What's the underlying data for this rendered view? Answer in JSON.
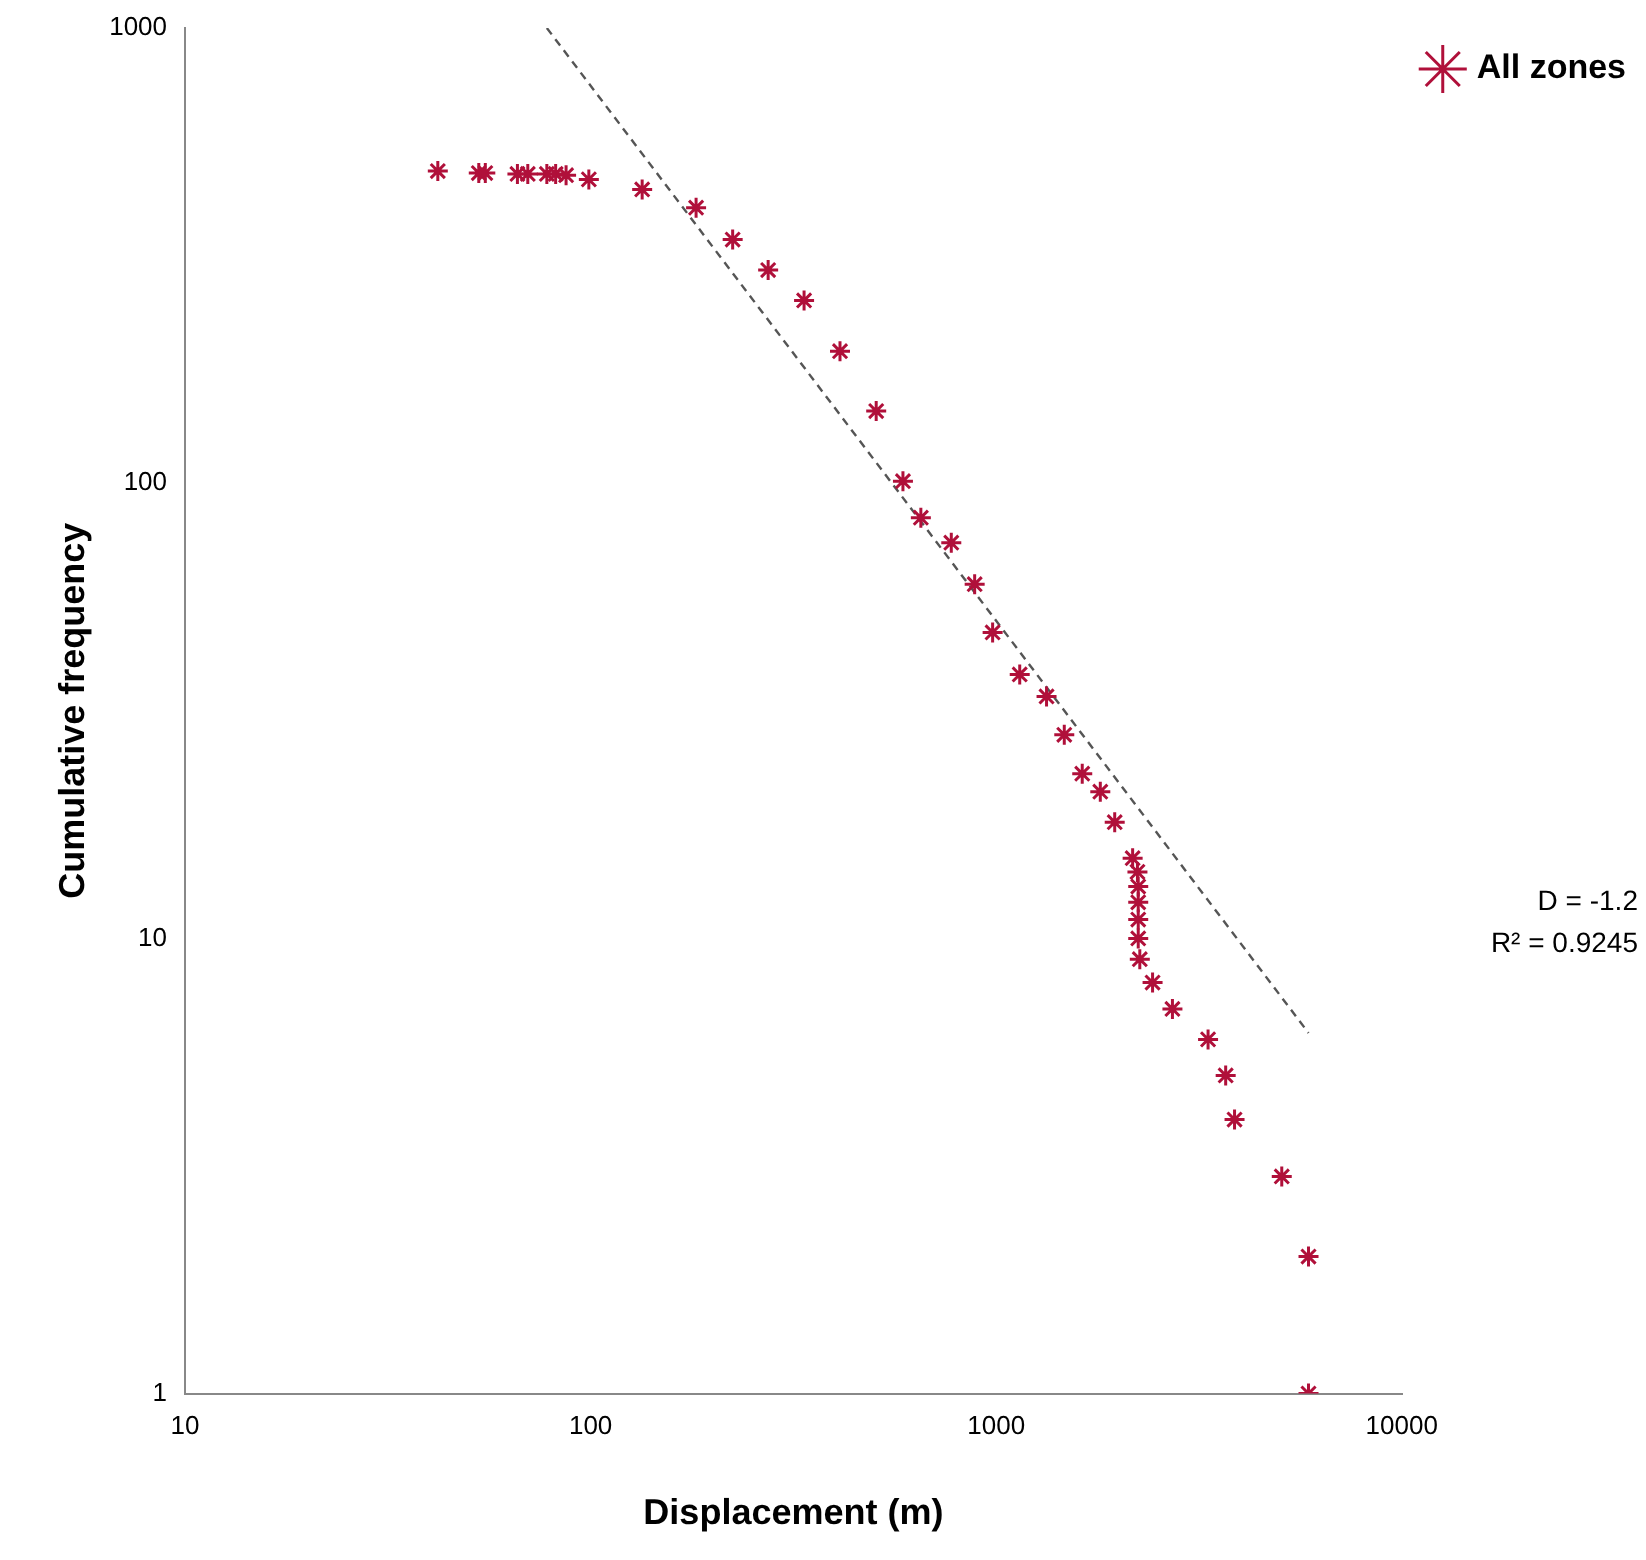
{
  "chart_data": {
    "type": "scatter",
    "xlabel": "Displacement (m)",
    "ylabel": "Cumulative frequency",
    "log": "xy",
    "xlim": [
      10,
      10000
    ],
    "xticks": [
      10,
      100,
      1000,
      10000
    ],
    "ylim": [
      1,
      1000
    ],
    "yticks": [
      1,
      10,
      100,
      1000
    ],
    "grid": false,
    "legend": "right",
    "marker": "cross",
    "annotations": [
      "D = -1.2\nR² = 0.9245"
    ],
    "series": [
      {
        "name": "All zones",
        "type": "scatter",
        "color": "#b0103a",
        "x": [
          42,
          53,
          55,
          66,
          70,
          78,
          82,
          87,
          99,
          134,
          182,
          224,
          274,
          336,
          412,
          506,
          589,
          652,
          775,
          885,
          980,
          1143,
          1331,
          1472,
          1630,
          1806,
          1960,
          2170,
          2230,
          2240,
          2240,
          2240,
          2240,
          2260,
          2430,
          2720,
          3330,
          3680,
          3870,
          5060,
          5890,
          5890
        ],
        "values": [
          485,
          480,
          480,
          478,
          478,
          478,
          478,
          475,
          465,
          442,
          403,
          343,
          294,
          252,
          195,
          144,
          101,
          84,
          74,
          60,
          47,
          38,
          34,
          28,
          23,
          21,
          18,
          15,
          14,
          13,
          12,
          11,
          10,
          9,
          8,
          7,
          6,
          5,
          4,
          3,
          2,
          1
        ]
      },
      {
        "type": "line",
        "color": "#555555",
        "line_style": "dashed",
        "marker": "none",
        "x": [
          78,
          5890
        ],
        "values": [
          1000,
          6.2
        ]
      }
    ]
  }
}
